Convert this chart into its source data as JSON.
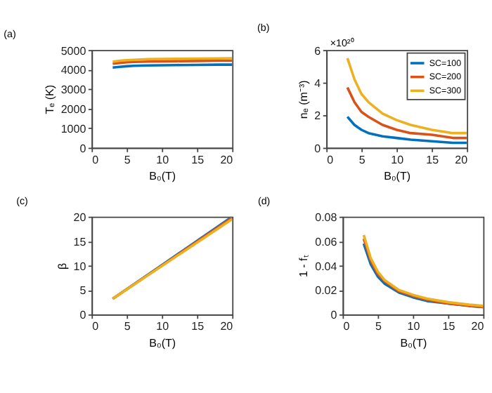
{
  "chart_data": [
    {
      "type": "line",
      "title": "(a)",
      "xlabel": "B₀(T)",
      "ylabel": "Tₑ (K)",
      "x": [
        3,
        4,
        5,
        6,
        8,
        10,
        12,
        15,
        18,
        20
      ],
      "xlim": [
        0,
        20
      ],
      "xticks": [
        0,
        5,
        10,
        15,
        20
      ],
      "ylim": [
        0,
        5000
      ],
      "yticks": [
        0,
        1000,
        2000,
        3000,
        4000,
        5000
      ],
      "grid": false,
      "legend": false,
      "series": [
        {
          "color": "#0072bd",
          "values": [
            4100,
            4140,
            4170,
            4190,
            4210,
            4220,
            4230,
            4240,
            4250,
            4250
          ]
        },
        {
          "color": "#d95319",
          "values": [
            4300,
            4340,
            4370,
            4390,
            4410,
            4420,
            4430,
            4440,
            4450,
            4450
          ]
        },
        {
          "color": "#edb120",
          "values": [
            4400,
            4450,
            4480,
            4500,
            4530,
            4540,
            4550,
            4560,
            4570,
            4580
          ]
        }
      ]
    },
    {
      "type": "line",
      "title": "(b)",
      "xlabel": "B₀(T)",
      "ylabel": "nₑ (m⁻³)",
      "annotations": [
        "×10²⁰"
      ],
      "x": [
        3,
        4,
        5,
        6,
        8,
        10,
        12,
        15,
        18,
        20
      ],
      "xlim": [
        0,
        20
      ],
      "xticks": [
        0,
        5,
        10,
        15,
        20
      ],
      "ylim": [
        0,
        6
      ],
      "yticks": [
        0,
        2,
        4,
        6
      ],
      "grid": false,
      "legend": "top right",
      "series": [
        {
          "name": "SC=100",
          "color": "#0072bd",
          "values": [
            1.9,
            1.4,
            1.1,
            0.9,
            0.7,
            0.6,
            0.5,
            0.4,
            0.3,
            0.3
          ]
        },
        {
          "name": "SC=200",
          "color": "#d95319",
          "values": [
            3.7,
            2.8,
            2.2,
            1.9,
            1.4,
            1.1,
            0.9,
            0.8,
            0.6,
            0.6
          ]
        },
        {
          "name": "SC=300",
          "color": "#edb120",
          "values": [
            5.5,
            4.2,
            3.3,
            2.8,
            2.1,
            1.7,
            1.4,
            1.1,
            0.9,
            0.9
          ]
        }
      ]
    },
    {
      "type": "line",
      "title": "(c)",
      "xlabel": "B₀(T)",
      "ylabel": "β",
      "x": [
        3,
        10,
        20
      ],
      "xlim": [
        0,
        20
      ],
      "xticks": [
        0,
        5,
        10,
        15,
        20
      ],
      "ylim": [
        0,
        20
      ],
      "yticks": [
        0,
        5,
        10,
        15,
        20
      ],
      "grid": false,
      "legend": false,
      "series": [
        {
          "color": "#0072bd",
          "values": [
            3.2,
            10.1,
            20
          ]
        },
        {
          "color": "#d95319",
          "values": [
            3.2,
            10.0,
            19.8
          ]
        },
        {
          "color": "#edb120",
          "values": [
            3.2,
            9.9,
            19.5
          ]
        }
      ]
    },
    {
      "type": "line",
      "title": "(d)",
      "xlabel": "B₀(T)",
      "ylabel": "1 - fₜ",
      "x": [
        3,
        4,
        5,
        6,
        8,
        10,
        12,
        15,
        18,
        20
      ],
      "xlim": [
        0,
        20
      ],
      "xticks": [
        0,
        5,
        10,
        15,
        20
      ],
      "ylim": [
        0,
        0.08
      ],
      "yticks": [
        0,
        0.02,
        0.04,
        0.06,
        0.08
      ],
      "grid": false,
      "legend": false,
      "series": [
        {
          "color": "#0072bd",
          "values": [
            0.058,
            0.041,
            0.031,
            0.025,
            0.018,
            0.014,
            0.011,
            0.009,
            0.007,
            0.006
          ]
        },
        {
          "color": "#d95319",
          "values": [
            0.062,
            0.044,
            0.033,
            0.027,
            0.019,
            0.015,
            0.012,
            0.009,
            0.007,
            0.006
          ]
        },
        {
          "color": "#edb120",
          "values": [
            0.065,
            0.046,
            0.035,
            0.028,
            0.02,
            0.016,
            0.013,
            0.01,
            0.008,
            0.007
          ]
        }
      ]
    }
  ]
}
